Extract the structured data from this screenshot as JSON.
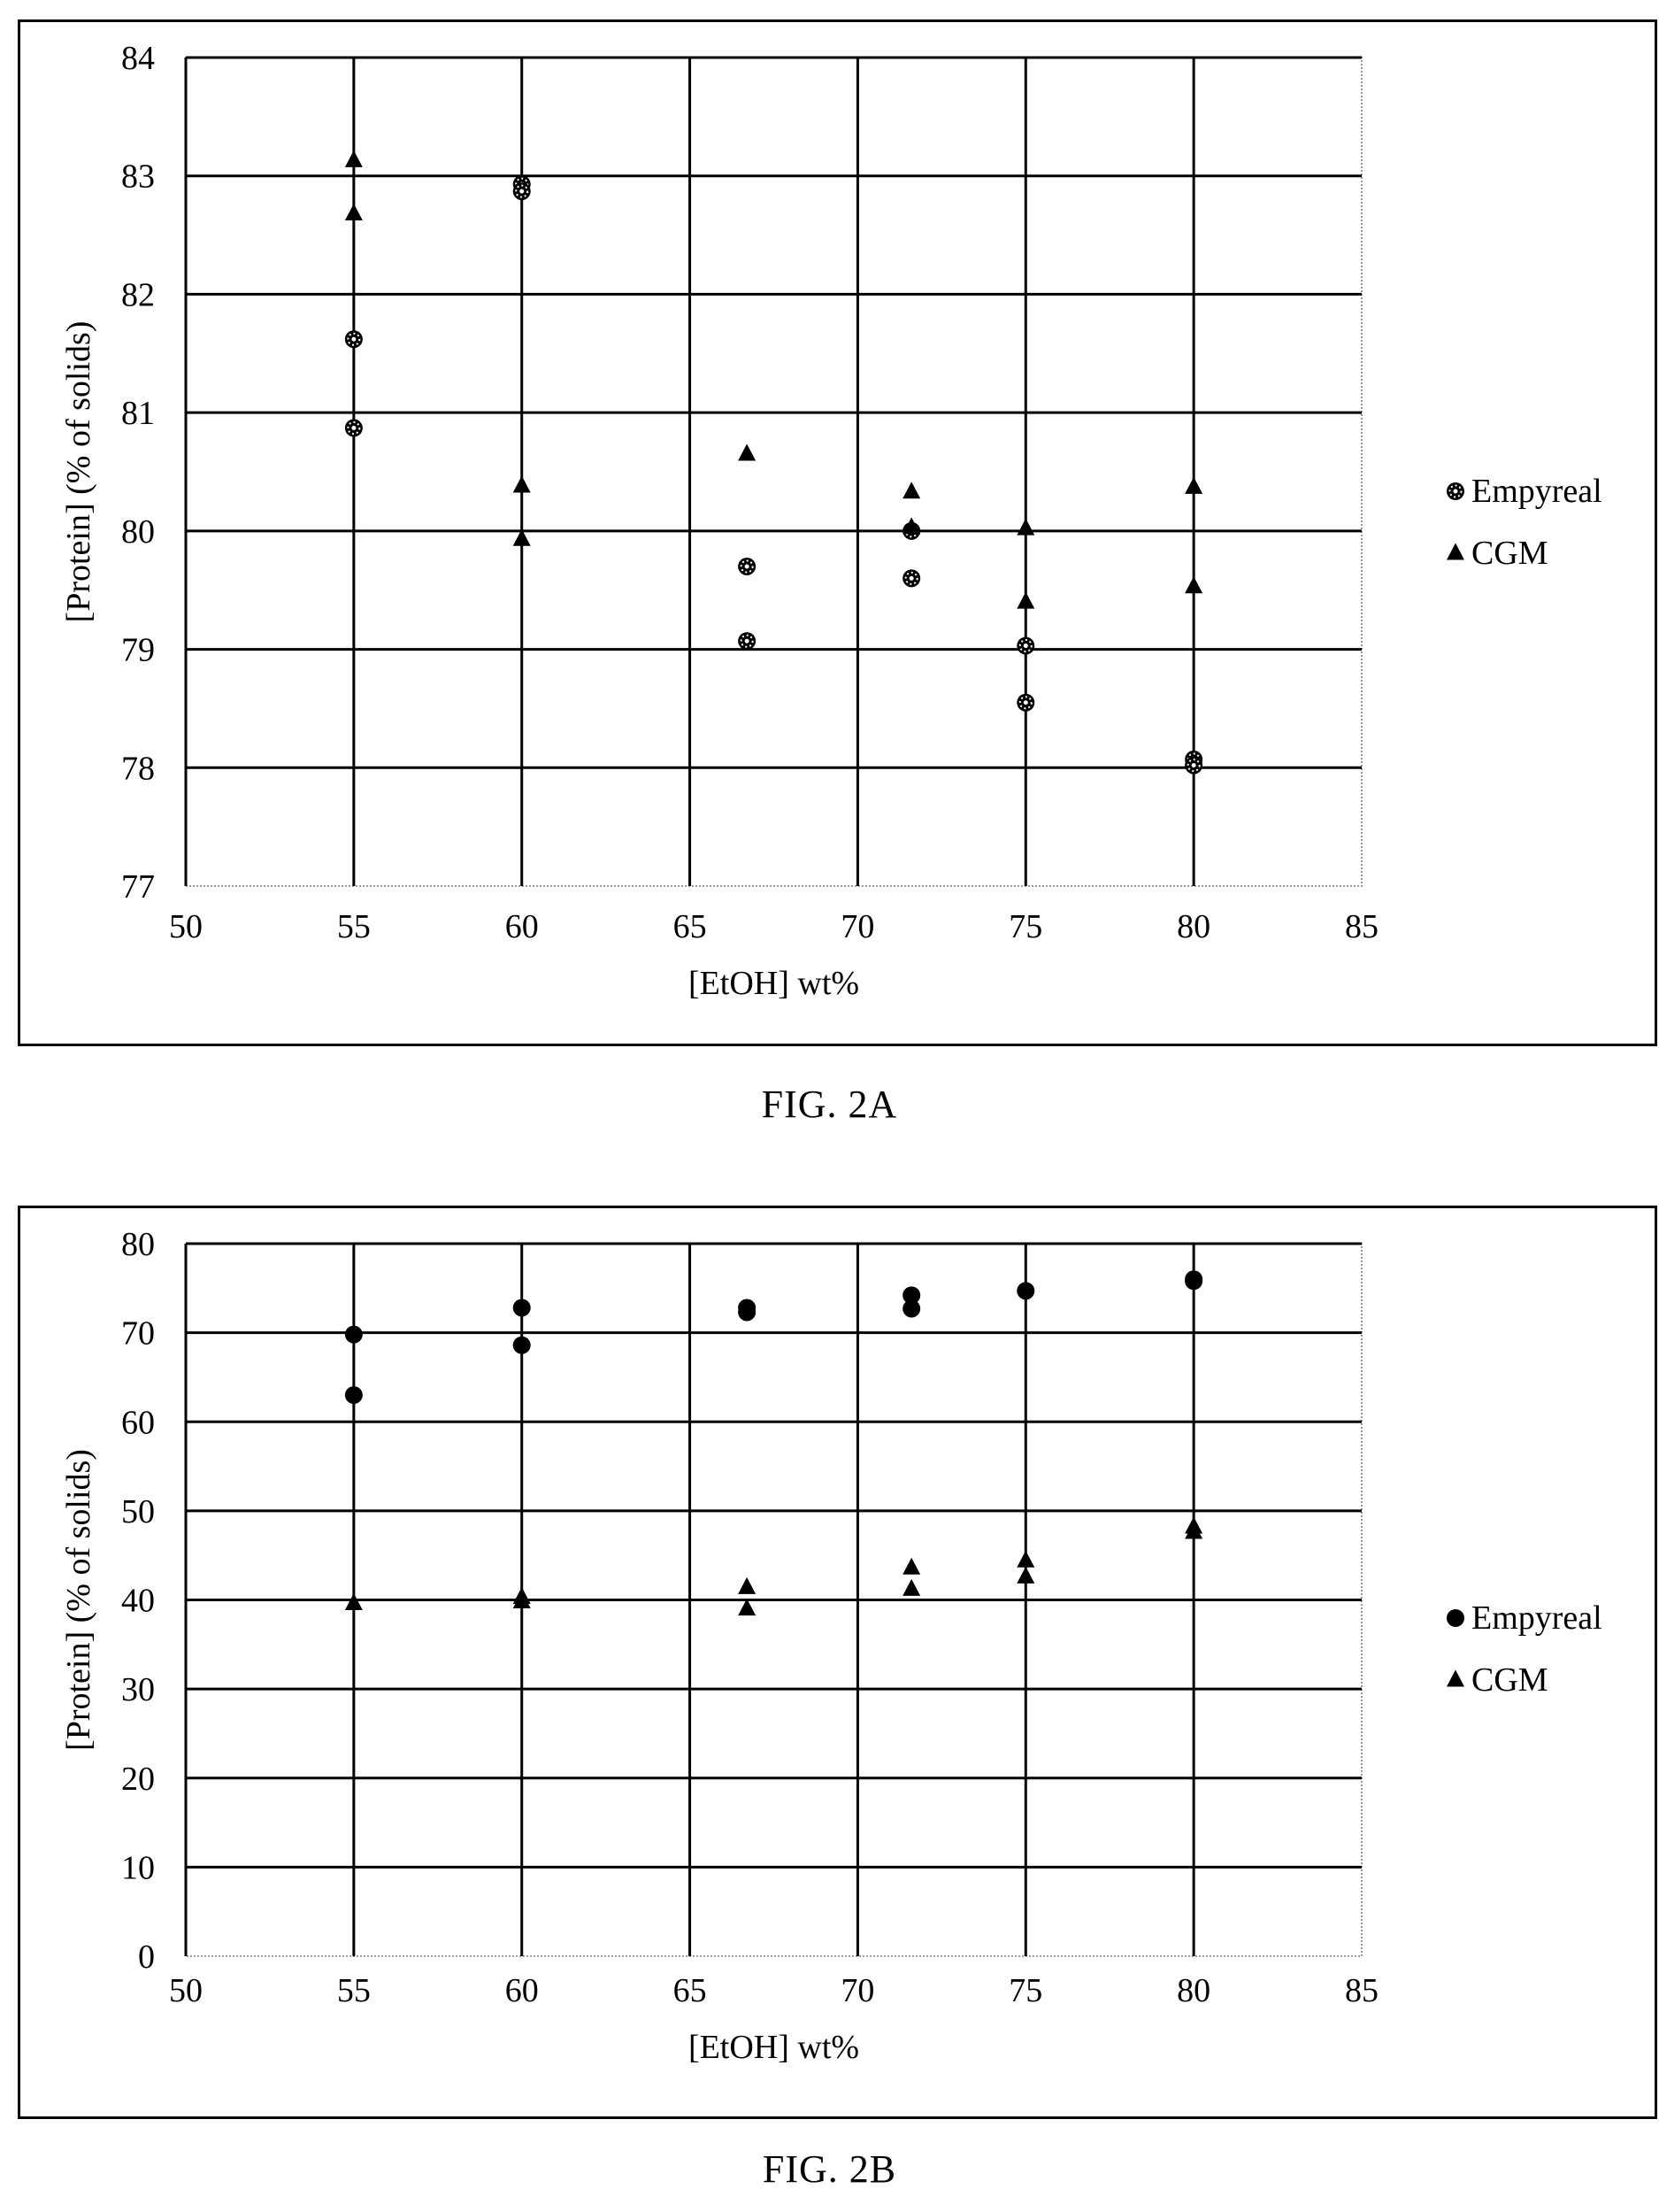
{
  "chart_data": [
    {
      "type": "scatter",
      "caption": "FIG. 2A",
      "xlabel": "[EtOH] wt%",
      "ylabel": "[Protein] (% of solids)",
      "xlim": [
        50,
        85
      ],
      "ylim": [
        77,
        84
      ],
      "xticks": [
        "50",
        "55",
        "60",
        "65",
        "70",
        "75",
        "80",
        "85"
      ],
      "yticks": [
        "77",
        "78",
        "79",
        "80",
        "81",
        "82",
        "83",
        "84"
      ],
      "grid": true,
      "legend_position": "right",
      "series": [
        {
          "name": "Empyreal",
          "marker": "dotted-circle",
          "points": [
            [
              55,
              81.62
            ],
            [
              55,
              80.87
            ],
            [
              60,
              82.93
            ],
            [
              60,
              82.87
            ],
            [
              66.7,
              79.7
            ],
            [
              66.7,
              79.07
            ],
            [
              71.6,
              80.0
            ],
            [
              71.6,
              79.6
            ],
            [
              75,
              79.03
            ],
            [
              75,
              78.55
            ],
            [
              80,
              78.07
            ],
            [
              80,
              78.02
            ]
          ]
        },
        {
          "name": "CGM",
          "marker": "triangle",
          "points": [
            [
              55,
              83.13
            ],
            [
              55,
              82.68
            ],
            [
              60,
              80.38
            ],
            [
              60,
              79.93
            ],
            [
              66.7,
              80.65
            ],
            [
              71.6,
              80.33
            ],
            [
              71.6,
              80.03
            ],
            [
              75,
              80.02
            ],
            [
              75,
              79.4
            ],
            [
              80,
              80.37
            ],
            [
              80,
              79.53
            ]
          ]
        }
      ]
    },
    {
      "type": "scatter",
      "caption": "FIG. 2B",
      "xlabel": "[EtOH] wt%",
      "ylabel": "[Protein] (% of solids)",
      "xlim": [
        50,
        85
      ],
      "ylim": [
        0,
        80
      ],
      "xticks": [
        "50",
        "55",
        "60",
        "65",
        "70",
        "75",
        "80",
        "85"
      ],
      "yticks": [
        "0",
        "10",
        "20",
        "30",
        "40",
        "50",
        "60",
        "70",
        "80"
      ],
      "grid": true,
      "legend_position": "right",
      "series": [
        {
          "name": "Empyreal",
          "marker": "circle",
          "points": [
            [
              55,
              69.8
            ],
            [
              55,
              63.0
            ],
            [
              60,
              72.8
            ],
            [
              60,
              68.6
            ],
            [
              66.7,
              72.8
            ],
            [
              66.7,
              72.3
            ],
            [
              71.6,
              74.2
            ],
            [
              71.6,
              72.7
            ],
            [
              75,
              74.7
            ],
            [
              80,
              76.0
            ],
            [
              80,
              75.8
            ]
          ]
        },
        {
          "name": "CGM",
          "marker": "triangle",
          "points": [
            [
              55,
              39.6
            ],
            [
              60,
              40.3
            ],
            [
              60,
              39.8
            ],
            [
              66.7,
              41.4
            ],
            [
              66.7,
              39.0
            ],
            [
              71.6,
              43.6
            ],
            [
              71.6,
              41.2
            ],
            [
              75,
              44.4
            ],
            [
              75,
              42.6
            ],
            [
              80,
              48.2
            ],
            [
              80,
              47.6
            ]
          ]
        }
      ]
    }
  ]
}
